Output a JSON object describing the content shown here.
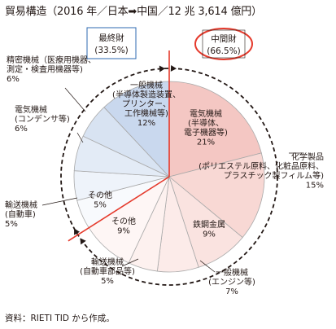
{
  "title": "貿易構造（2016 年／日本➡中国／12 兆 3,614 億円）",
  "source": "資料：RIETI TID から作成。",
  "chart_data": {
    "type": "pie",
    "title": "貿易構造（2016 年／日本➡中国／12 兆 3,614 億円）",
    "groups": [
      {
        "name": "最終財",
        "share": "(33.5%)",
        "value": 33.5
      },
      {
        "name": "中間財",
        "share": "(66.5%)",
        "value": 66.5
      }
    ],
    "slices": [
      {
        "group": "中間財",
        "label": [
          "電気機械",
          "(半導体、",
          "電子機器等)"
        ],
        "pct": "21%",
        "value": 21,
        "color": "#f4c7c3"
      },
      {
        "group": "中間財",
        "label": [
          "化学製品",
          "(ポリエステル原料、化粧品原料、",
          "プラスチック製フィルム等)"
        ],
        "pct": "15%",
        "value": 15,
        "color": "#f8d8d4"
      },
      {
        "group": "中間財",
        "label": [
          "鉄鋼金属"
        ],
        "pct": "9%",
        "value": 9,
        "color": "#fae3e0"
      },
      {
        "group": "中間財",
        "label": [
          "一般機械",
          "(エンジン等)"
        ],
        "pct": "7%",
        "value": 7,
        "color": "#fcebe9"
      },
      {
        "group": "中間財",
        "label": [
          "輸送機械",
          "(自動車部品等)"
        ],
        "pct": "5%",
        "value": 5,
        "color": "#fdf1ef"
      },
      {
        "group": "中間財",
        "label": [
          "その他"
        ],
        "pct": "9%",
        "value": 9,
        "color": "#fef6f5"
      },
      {
        "group": "最終財",
        "label": [
          "その他"
        ],
        "pct": "5%",
        "value": 5,
        "color": "#f8fafd"
      },
      {
        "group": "最終財",
        "label": [
          "輸送機械",
          "(自動車)"
        ],
        "pct": "5%",
        "value": 5,
        "color": "#eef3fa"
      },
      {
        "group": "最終財",
        "label": [
          "電気機械",
          "(コンデンサ等)"
        ],
        "pct": "6%",
        "value": 6,
        "color": "#e3ebf6"
      },
      {
        "group": "最終財",
        "label": [
          "精密機械（医療用機器、",
          "測定・検査用機器等)"
        ],
        "pct": "6%",
        "value": 6,
        "color": "#d8e3f2"
      },
      {
        "group": "最終財",
        "label": [
          "一般機械",
          "(半導体製造装置、",
          "プリンター、",
          "工作機械等)"
        ],
        "pct": "12%",
        "value": 12,
        "color": "#c9d8ee"
      }
    ],
    "colors": {
      "final_goods_box": "#2e6ab0",
      "intermediate_goods_ellipse": "#e53a2c",
      "divider": "#e53a2c",
      "slice_border": "#a9a9a9"
    }
  }
}
